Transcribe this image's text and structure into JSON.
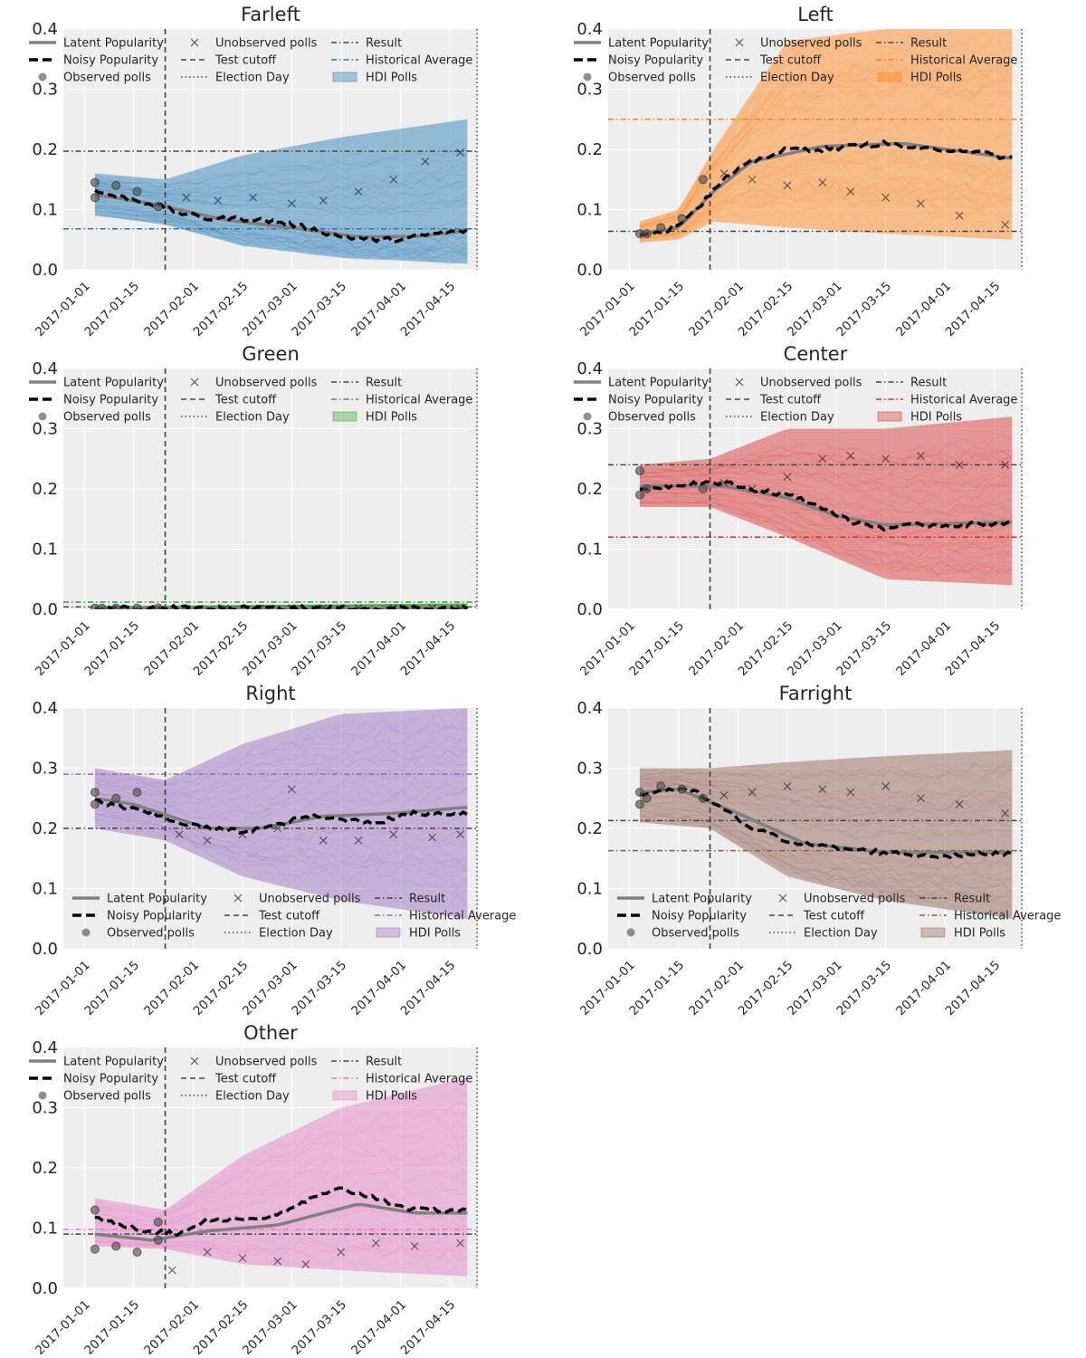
{
  "chart_data": [
    {
      "type": "line",
      "title": "Farleft",
      "color": "#1f77b4",
      "legend_position": "top",
      "ylim": [
        0.0,
        0.4
      ],
      "yticks": [
        "0.0",
        "0.1",
        "0.2",
        "0.3",
        "0.4"
      ],
      "xlim": [
        "2016-12-26",
        "2017-04-23"
      ],
      "xticks": [
        "2017-01-01",
        "2017-01-15",
        "2017-02-01",
        "2017-02-15",
        "2017-03-01",
        "2017-03-15",
        "2017-04-01",
        "2017-04-15"
      ],
      "test_cutoff": "2017-01-24",
      "election_day": "2017-04-23",
      "result": 0.197,
      "historical_average": 0.068,
      "latent": {
        "x": [
          "2017-01-04",
          "2017-01-20",
          "2017-02-10",
          "2017-03-01",
          "2017-03-20",
          "2017-04-05",
          "2017-04-20"
        ],
        "y": [
          0.125,
          0.11,
          0.083,
          0.07,
          0.055,
          0.055,
          0.065
        ]
      },
      "noisy": {
        "x": [
          "2017-01-04",
          "2017-01-12",
          "2017-01-20",
          "2017-01-28",
          "2017-02-05",
          "2017-02-15",
          "2017-02-25",
          "2017-03-05",
          "2017-03-15",
          "2017-03-25",
          "2017-04-01",
          "2017-04-10",
          "2017-04-20"
        ],
        "y": [
          0.13,
          0.12,
          0.11,
          0.095,
          0.085,
          0.085,
          0.08,
          0.07,
          0.055,
          0.05,
          0.05,
          0.06,
          0.065
        ]
      },
      "band": {
        "x": [
          "2017-01-04",
          "2017-01-24",
          "2017-02-15",
          "2017-03-15",
          "2017-04-20"
        ],
        "lower": [
          0.09,
          0.075,
          0.04,
          0.02,
          0.01
        ],
        "upper": [
          0.16,
          0.15,
          0.19,
          0.22,
          0.25
        ]
      },
      "observed_polls": {
        "x": [
          "2017-01-04",
          "2017-01-04",
          "2017-01-10",
          "2017-01-16",
          "2017-01-22"
        ],
        "y": [
          0.145,
          0.12,
          0.14,
          0.13,
          0.105
        ]
      },
      "unobserved_polls": {
        "x": [
          "2017-01-30",
          "2017-02-08",
          "2017-02-18",
          "2017-03-01",
          "2017-03-10",
          "2017-03-20",
          "2017-03-30",
          "2017-04-08",
          "2017-04-18"
        ],
        "y": [
          0.12,
          0.115,
          0.12,
          0.11,
          0.115,
          0.13,
          0.15,
          0.18,
          0.195
        ]
      }
    },
    {
      "type": "line",
      "title": "Left",
      "color": "#ff7f0e",
      "legend_position": "top",
      "ylim": [
        0.0,
        0.4
      ],
      "yticks": [
        "0.0",
        "0.1",
        "0.2",
        "0.3",
        "0.4"
      ],
      "xlim": [
        "2016-12-26",
        "2017-04-23"
      ],
      "xticks": [
        "2017-01-01",
        "2017-01-15",
        "2017-02-01",
        "2017-02-15",
        "2017-03-01",
        "2017-03-15",
        "2017-04-01",
        "2017-04-15"
      ],
      "test_cutoff": "2017-01-24",
      "election_day": "2017-04-23",
      "result": 0.064,
      "historical_average": 0.25,
      "latent": {
        "x": [
          "2017-01-04",
          "2017-01-15",
          "2017-01-25",
          "2017-02-05",
          "2017-02-25",
          "2017-03-20",
          "2017-04-20"
        ],
        "y": [
          0.06,
          0.07,
          0.13,
          0.18,
          0.205,
          0.21,
          0.185
        ]
      },
      "noisy": {
        "x": [
          "2017-01-04",
          "2017-01-12",
          "2017-01-20",
          "2017-01-28",
          "2017-02-05",
          "2017-02-15",
          "2017-02-25",
          "2017-03-05",
          "2017-03-15",
          "2017-03-25",
          "2017-04-05",
          "2017-04-20"
        ],
        "y": [
          0.06,
          0.065,
          0.1,
          0.15,
          0.18,
          0.2,
          0.2,
          0.205,
          0.21,
          0.2,
          0.2,
          0.185
        ]
      },
      "band": {
        "x": [
          "2017-01-04",
          "2017-01-15",
          "2017-01-25",
          "2017-02-15",
          "2017-03-15",
          "2017-04-20"
        ],
        "lower": [
          0.045,
          0.05,
          0.08,
          0.07,
          0.06,
          0.05
        ],
        "upper": [
          0.08,
          0.1,
          0.2,
          0.38,
          0.4,
          0.4
        ]
      },
      "observed_polls": {
        "x": [
          "2017-01-04",
          "2017-01-06",
          "2017-01-10",
          "2017-01-16",
          "2017-01-22"
        ],
        "y": [
          0.06,
          0.06,
          0.07,
          0.085,
          0.15
        ]
      },
      "unobserved_polls": {
        "x": [
          "2017-01-28",
          "2017-02-05",
          "2017-02-15",
          "2017-02-25",
          "2017-03-05",
          "2017-03-15",
          "2017-03-25",
          "2017-04-05",
          "2017-04-18"
        ],
        "y": [
          0.16,
          0.15,
          0.14,
          0.145,
          0.13,
          0.12,
          0.11,
          0.09,
          0.075
        ]
      }
    },
    {
      "type": "line",
      "title": "Green",
      "color": "#2ca02c",
      "legend_position": "top",
      "ylim": [
        0.0,
        0.4
      ],
      "yticks": [
        "0.0",
        "0.1",
        "0.2",
        "0.3",
        "0.4"
      ],
      "xlim": [
        "2016-12-26",
        "2017-04-23"
      ],
      "xticks": [
        "2017-01-01",
        "2017-01-15",
        "2017-02-01",
        "2017-02-15",
        "2017-03-01",
        "2017-03-15",
        "2017-04-01",
        "2017-04-15"
      ],
      "test_cutoff": "2017-01-24",
      "election_day": "2017-04-23",
      "result": 0.004,
      "historical_average": 0.012,
      "latent": {
        "x": [
          "2017-01-04",
          "2017-04-20"
        ],
        "y": [
          0.002,
          0.002
        ]
      },
      "noisy": {
        "x": [
          "2017-01-04",
          "2017-04-20"
        ],
        "y": [
          0.002,
          0.002
        ]
      },
      "band": {
        "x": [
          "2017-01-04",
          "2017-04-20"
        ],
        "lower": [
          0.0,
          0.0
        ],
        "upper": [
          0.005,
          0.01
        ]
      },
      "observed_polls": {
        "x": [
          "2017-01-04",
          "2017-01-06",
          "2017-01-10",
          "2017-01-16",
          "2017-01-22"
        ],
        "y": [
          0.002,
          0.002,
          0.002,
          0.002,
          0.002
        ]
      },
      "unobserved_polls": {
        "x": [
          "2017-01-30",
          "2017-02-10",
          "2017-02-20",
          "2017-03-01",
          "2017-03-10",
          "2017-03-20",
          "2017-03-30",
          "2017-04-10",
          "2017-04-18"
        ],
        "y": [
          0.002,
          0.002,
          0.002,
          0.002,
          0.002,
          0.002,
          0.002,
          0.002,
          0.002
        ]
      }
    },
    {
      "type": "line",
      "title": "Center",
      "color": "#d62728",
      "legend_position": "top",
      "ylim": [
        0.0,
        0.4
      ],
      "yticks": [
        "0.0",
        "0.1",
        "0.2",
        "0.3",
        "0.4"
      ],
      "xlim": [
        "2016-12-26",
        "2017-04-23"
      ],
      "xticks": [
        "2017-01-01",
        "2017-01-15",
        "2017-02-01",
        "2017-02-15",
        "2017-03-01",
        "2017-03-15",
        "2017-04-01",
        "2017-04-15"
      ],
      "test_cutoff": "2017-01-24",
      "election_day": "2017-04-23",
      "result": 0.24,
      "historical_average": 0.12,
      "latent": {
        "x": [
          "2017-01-04",
          "2017-01-28",
          "2017-02-15",
          "2017-03-01",
          "2017-03-15",
          "2017-04-20"
        ],
        "y": [
          0.205,
          0.205,
          0.185,
          0.155,
          0.14,
          0.145
        ]
      },
      "noisy": {
        "x": [
          "2017-01-04",
          "2017-01-12",
          "2017-01-20",
          "2017-01-28",
          "2017-02-05",
          "2017-02-15",
          "2017-02-25",
          "2017-03-05",
          "2017-03-15",
          "2017-03-25",
          "2017-04-05",
          "2017-04-20"
        ],
        "y": [
          0.2,
          0.205,
          0.21,
          0.21,
          0.2,
          0.19,
          0.17,
          0.145,
          0.135,
          0.14,
          0.14,
          0.145
        ]
      },
      "band": {
        "x": [
          "2017-01-04",
          "2017-01-24",
          "2017-02-15",
          "2017-03-15",
          "2017-04-20"
        ],
        "lower": [
          0.17,
          0.17,
          0.12,
          0.05,
          0.04
        ],
        "upper": [
          0.24,
          0.25,
          0.3,
          0.3,
          0.32
        ]
      },
      "observed_polls": {
        "x": [
          "2017-01-04",
          "2017-01-04",
          "2017-01-06",
          "2017-01-22"
        ],
        "y": [
          0.23,
          0.19,
          0.2,
          0.2
        ]
      },
      "unobserved_polls": {
        "x": [
          "2017-01-28",
          "2017-02-05",
          "2017-02-15",
          "2017-02-25",
          "2017-03-05",
          "2017-03-15",
          "2017-03-25",
          "2017-04-05",
          "2017-04-18"
        ],
        "y": [
          0.21,
          0.2,
          0.22,
          0.25,
          0.255,
          0.25,
          0.255,
          0.24,
          0.24
        ]
      }
    },
    {
      "type": "line",
      "title": "Right",
      "color": "#9467bd",
      "legend_position": "bottom",
      "ylim": [
        0.0,
        0.4
      ],
      "yticks": [
        "0.0",
        "0.1",
        "0.2",
        "0.3",
        "0.4"
      ],
      "xlim": [
        "2016-12-26",
        "2017-04-23"
      ],
      "xticks": [
        "2017-01-01",
        "2017-01-15",
        "2017-02-01",
        "2017-02-15",
        "2017-03-01",
        "2017-03-15",
        "2017-04-01",
        "2017-04-15"
      ],
      "test_cutoff": "2017-01-24",
      "election_day": "2017-04-23",
      "result": 0.2,
      "historical_average": 0.29,
      "latent": {
        "x": [
          "2017-01-04",
          "2017-01-15",
          "2017-02-05",
          "2017-02-20",
          "2017-03-10",
          "2017-03-30",
          "2017-04-20"
        ],
        "y": [
          0.25,
          0.24,
          0.2,
          0.2,
          0.22,
          0.225,
          0.235
        ]
      },
      "noisy": {
        "x": [
          "2017-01-04",
          "2017-01-12",
          "2017-01-20",
          "2017-01-28",
          "2017-02-05",
          "2017-02-15",
          "2017-02-25",
          "2017-03-05",
          "2017-03-15",
          "2017-03-25",
          "2017-04-05",
          "2017-04-20"
        ],
        "y": [
          0.245,
          0.235,
          0.225,
          0.21,
          0.2,
          0.195,
          0.205,
          0.22,
          0.215,
          0.21,
          0.225,
          0.225
        ]
      },
      "band": {
        "x": [
          "2017-01-04",
          "2017-01-24",
          "2017-02-15",
          "2017-03-15",
          "2017-04-20"
        ],
        "lower": [
          0.2,
          0.18,
          0.12,
          0.08,
          0.05
        ],
        "upper": [
          0.3,
          0.28,
          0.34,
          0.39,
          0.4
        ]
      },
      "observed_polls": {
        "x": [
          "2017-01-04",
          "2017-01-04",
          "2017-01-10",
          "2017-01-16"
        ],
        "y": [
          0.26,
          0.24,
          0.25,
          0.26
        ]
      },
      "unobserved_polls": {
        "x": [
          "2017-01-28",
          "2017-02-05",
          "2017-02-15",
          "2017-02-25",
          "2017-03-01",
          "2017-03-10",
          "2017-03-20",
          "2017-03-30",
          "2017-04-10",
          "2017-04-18"
        ],
        "y": [
          0.19,
          0.18,
          0.19,
          0.2,
          0.265,
          0.18,
          0.18,
          0.19,
          0.185,
          0.19
        ]
      }
    },
    {
      "type": "line",
      "title": "Farright",
      "color": "#8c564b",
      "legend_position": "bottom",
      "ylim": [
        0.0,
        0.4
      ],
      "yticks": [
        "0.0",
        "0.1",
        "0.2",
        "0.3",
        "0.4"
      ],
      "xlim": [
        "2016-12-26",
        "2017-04-23"
      ],
      "xticks": [
        "2017-01-01",
        "2017-01-15",
        "2017-02-01",
        "2017-02-15",
        "2017-03-01",
        "2017-03-15",
        "2017-04-01",
        "2017-04-15"
      ],
      "test_cutoff": "2017-01-24",
      "election_day": "2017-04-23",
      "result": 0.213,
      "historical_average": 0.163,
      "latent": {
        "x": [
          "2017-01-04",
          "2017-01-15",
          "2017-02-01",
          "2017-02-20",
          "2017-03-15",
          "2017-04-20"
        ],
        "y": [
          0.26,
          0.265,
          0.225,
          0.175,
          0.16,
          0.16
        ]
      },
      "noisy": {
        "x": [
          "2017-01-04",
          "2017-01-12",
          "2017-01-20",
          "2017-01-28",
          "2017-02-05",
          "2017-02-15",
          "2017-02-25",
          "2017-03-05",
          "2017-03-15",
          "2017-03-25",
          "2017-04-05",
          "2017-04-20"
        ],
        "y": [
          0.255,
          0.265,
          0.26,
          0.23,
          0.2,
          0.18,
          0.17,
          0.165,
          0.16,
          0.155,
          0.155,
          0.16
        ]
      },
      "band": {
        "x": [
          "2017-01-04",
          "2017-01-24",
          "2017-02-15",
          "2017-03-15",
          "2017-04-20"
        ],
        "lower": [
          0.21,
          0.2,
          0.12,
          0.08,
          0.05
        ],
        "upper": [
          0.3,
          0.3,
          0.31,
          0.32,
          0.33
        ]
      },
      "observed_polls": {
        "x": [
          "2017-01-04",
          "2017-01-04",
          "2017-01-06",
          "2017-01-10",
          "2017-01-16",
          "2017-01-22"
        ],
        "y": [
          0.26,
          0.24,
          0.25,
          0.27,
          0.265,
          0.25
        ]
      },
      "unobserved_polls": {
        "x": [
          "2017-01-28",
          "2017-02-05",
          "2017-02-15",
          "2017-02-25",
          "2017-03-05",
          "2017-03-15",
          "2017-03-25",
          "2017-04-05",
          "2017-04-18"
        ],
        "y": [
          0.255,
          0.26,
          0.27,
          0.265,
          0.26,
          0.27,
          0.25,
          0.24,
          0.225
        ]
      }
    },
    {
      "type": "line",
      "title": "Other",
      "color": "#e377c2",
      "legend_position": "top",
      "ylim": [
        0.0,
        0.4
      ],
      "yticks": [
        "0.0",
        "0.1",
        "0.2",
        "0.3",
        "0.4"
      ],
      "xlim": [
        "2016-12-26",
        "2017-04-23"
      ],
      "xticks": [
        "2017-01-01",
        "2017-01-15",
        "2017-02-01",
        "2017-02-15",
        "2017-03-01",
        "2017-03-15",
        "2017-04-01",
        "2017-04-15"
      ],
      "test_cutoff": "2017-01-24",
      "election_day": "2017-04-23",
      "result": 0.09,
      "historical_average": 0.098,
      "latent": {
        "x": [
          "2017-01-04",
          "2017-01-20",
          "2017-02-05",
          "2017-02-25",
          "2017-03-20",
          "2017-04-05",
          "2017-04-20"
        ],
        "y": [
          0.09,
          0.08,
          0.095,
          0.105,
          0.14,
          0.125,
          0.125
        ]
      },
      "noisy": {
        "x": [
          "2017-01-04",
          "2017-01-12",
          "2017-01-20",
          "2017-01-28",
          "2017-02-05",
          "2017-02-15",
          "2017-02-25",
          "2017-03-05",
          "2017-03-15",
          "2017-03-25",
          "2017-04-05",
          "2017-04-20"
        ],
        "y": [
          0.115,
          0.105,
          0.095,
          0.09,
          0.115,
          0.115,
          0.12,
          0.145,
          0.165,
          0.15,
          0.13,
          0.13
        ]
      },
      "band": {
        "x": [
          "2017-01-04",
          "2017-01-24",
          "2017-02-15",
          "2017-03-15",
          "2017-04-20"
        ],
        "lower": [
          0.07,
          0.065,
          0.04,
          0.03,
          0.02
        ],
        "upper": [
          0.15,
          0.13,
          0.22,
          0.3,
          0.35
        ]
      },
      "observed_polls": {
        "x": [
          "2017-01-04",
          "2017-01-04",
          "2017-01-10",
          "2017-01-16",
          "2017-01-22",
          "2017-01-22"
        ],
        "y": [
          0.13,
          0.065,
          0.07,
          0.06,
          0.08,
          0.11
        ]
      },
      "unobserved_polls": {
        "x": [
          "2017-01-26",
          "2017-02-05",
          "2017-02-15",
          "2017-02-25",
          "2017-03-05",
          "2017-03-15",
          "2017-03-25",
          "2017-04-05",
          "2017-04-18"
        ],
        "y": [
          0.03,
          0.06,
          0.05,
          0.045,
          0.04,
          0.06,
          0.075,
          0.07,
          0.075
        ]
      }
    }
  ],
  "legend": {
    "latent": "Latent Popularity",
    "noisy": "Noisy Popularity",
    "observed": "Observed polls",
    "unobserved": "Unobserved polls",
    "cutoff": "Test cutoff",
    "election": "Election Day",
    "result": "Result",
    "historical": "Historical Average",
    "hdi": "HDI Polls"
  }
}
